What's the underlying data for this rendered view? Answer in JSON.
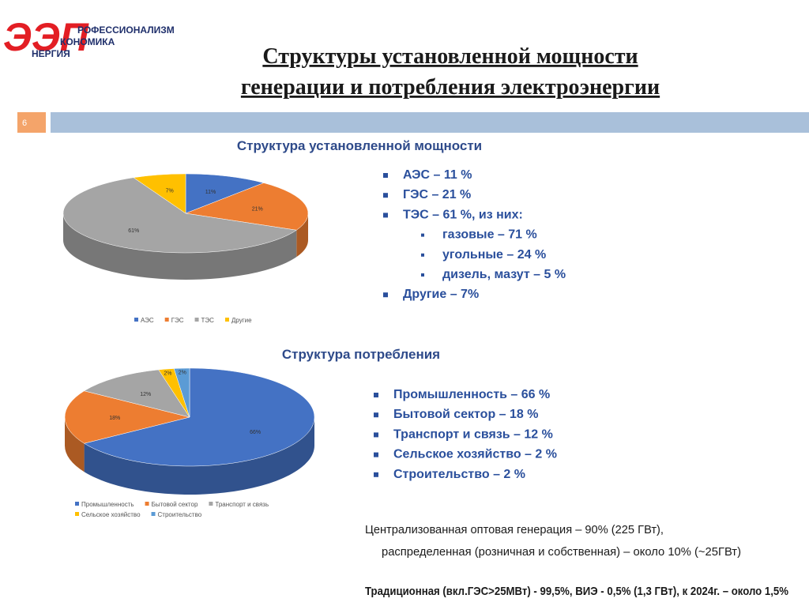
{
  "logo": {
    "mark": "ЭЭП",
    "lines": [
      "РОФЕССИОНАЛИЗМ",
      "КОНОМИКА",
      "НЕРГИЯ"
    ]
  },
  "title": [
    "Структуры установленной мощности",
    "генерации и потребления электроэнергии"
  ],
  "slide_number": "6",
  "chart_data": [
    {
      "type": "pie",
      "title": "Структура установленной мощности",
      "categories": [
        "АЭС",
        "ГЭС",
        "ТЭС",
        "Другие"
      ],
      "values": [
        11,
        21,
        61,
        7
      ],
      "value_labels": [
        "11%",
        "21%",
        "61%",
        "7%"
      ],
      "colors": [
        "#4472c4",
        "#ed7d31",
        "#a5a5a5",
        "#ffc000"
      ],
      "legend": "bottom"
    },
    {
      "type": "pie",
      "title": "Структура потребления",
      "categories": [
        "Промышленность",
        "Бытовой сектор",
        "Транспорт и связь",
        "Сельское хозяйство",
        "Строительство"
      ],
      "values": [
        66,
        18,
        12,
        2,
        2
      ],
      "value_labels": [
        "66%",
        "18%",
        "12%",
        "2%",
        "2%"
      ],
      "colors": [
        "#4472c4",
        "#ed7d31",
        "#a5a5a5",
        "#ffc000",
        "#5b9bd5"
      ],
      "legend": "bottom"
    }
  ],
  "bullets": [
    [
      {
        "text": "АЭС – 11 %",
        "level": 1
      },
      {
        "text": "ГЭС – 21 %",
        "level": 1
      },
      {
        "text": "ТЭС – 61 %, из них:",
        "level": 1
      },
      {
        "text": "газовые – 71 %",
        "level": 2
      },
      {
        "text": "угольные – 24 %",
        "level": 2
      },
      {
        "text": "дизель, мазут – 5 %",
        "level": 2
      },
      {
        "text": "Другие – 7%",
        "level": 1
      }
    ],
    [
      {
        "text": "Промышленность – 66 %",
        "level": 1
      },
      {
        "text": "Бытовой сектор – 18 %",
        "level": 1
      },
      {
        "text": "Транспорт и связь – 12 %",
        "level": 1
      },
      {
        "text": "Сельское хозяйство – 2 %",
        "level": 1
      },
      {
        "text": "Строительство – 2 %",
        "level": 1
      }
    ]
  ],
  "notes": [
    "Централизованная оптовая генерация – 90% (225 ГВт),",
    "распределенная (розничная и собственная) – около 10% (~25ГВт)",
    "Традиционная (вкл.ГЭС>25МВт) - 99,5%, ВИЭ - 0,5% (1,3 ГВт), к 2024г. – около 1,5%"
  ]
}
